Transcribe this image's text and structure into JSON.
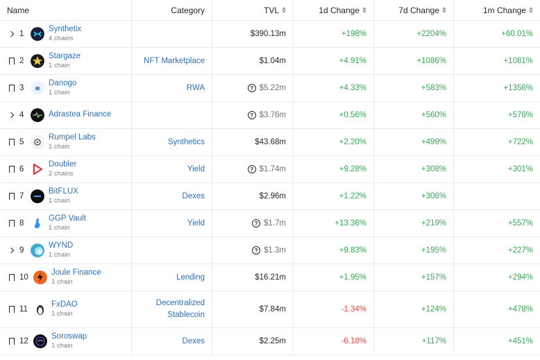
{
  "header": {
    "name": "Name",
    "category": "Category",
    "tvl": "TVL",
    "change_1d": "1d Change",
    "change_7d": "7d Change",
    "change_1m": "1m Change"
  },
  "rows": [
    {
      "rank": "1",
      "lead": "chevron",
      "name": "Synthetix",
      "chains": "4 chains",
      "category": "",
      "tvl": "$390.13m",
      "tvl_flag": false,
      "d1": "+198%",
      "d7": "+2204%",
      "m1": "+60.01%",
      "logo_color": "#1a1f3c",
      "logo_icon": "synthetix-logo-icon"
    },
    {
      "rank": "2",
      "lead": "bookmark",
      "name": "Stargaze",
      "chains": "1 chain",
      "category": "NFT Marketplace",
      "tvl": "$1.04m",
      "tvl_flag": false,
      "d1": "+4.91%",
      "d7": "+1086%",
      "m1": "+1081%",
      "logo_color": "#1c1c1c",
      "logo_icon": "stargaze-logo-icon"
    },
    {
      "rank": "3",
      "lead": "bookmark",
      "name": "Danogo",
      "chains": "1 chain",
      "category": "RWA",
      "tvl": "$5.22m",
      "tvl_flag": true,
      "d1": "+4.33%",
      "d7": "+583%",
      "m1": "+1356%",
      "logo_color": "#e8f0fb",
      "logo_icon": "danogo-logo-icon"
    },
    {
      "rank": "4",
      "lead": "chevron",
      "name": "Adrastea Finance",
      "chains": "",
      "category": "",
      "tvl": "$3.76m",
      "tvl_flag": true,
      "d1": "+0.56%",
      "d7": "+560%",
      "m1": "+576%",
      "logo_color": "#111111",
      "logo_icon": "adrastea-logo-icon"
    },
    {
      "rank": "5",
      "lead": "bookmark",
      "name": "Rumpel Labs",
      "chains": "1 chain",
      "category": "Synthetics",
      "tvl": "$43.68m",
      "tvl_flag": false,
      "d1": "+2.20%",
      "d7": "+499%",
      "m1": "+722%",
      "logo_color": "#f2f2f2",
      "logo_icon": "rumpel-logo-icon"
    },
    {
      "rank": "6",
      "lead": "bookmark",
      "name": "Doubler",
      "chains": "2 chains",
      "category": "Yield",
      "tvl": "$1.74m",
      "tvl_flag": true,
      "d1": "+9.28%",
      "d7": "+308%",
      "m1": "+301%",
      "logo_color": "#ffffff",
      "logo_icon": "doubler-logo-icon"
    },
    {
      "rank": "7",
      "lead": "bookmark",
      "name": "BitFLUX",
      "chains": "1 chain",
      "category": "Dexes",
      "tvl": "$2.96m",
      "tvl_flag": false,
      "d1": "+1.22%",
      "d7": "+306%",
      "m1": "",
      "logo_color": "#0d0d0d",
      "logo_icon": "bitflux-logo-icon"
    },
    {
      "rank": "8",
      "lead": "bookmark",
      "name": "GGP Vault",
      "chains": "1 chain",
      "category": "Yield",
      "tvl": "$1.7m",
      "tvl_flag": true,
      "d1": "+13.36%",
      "d7": "+219%",
      "m1": "+557%",
      "logo_color": "#ffffff",
      "logo_icon": "ggp-vault-logo-icon"
    },
    {
      "rank": "9",
      "lead": "chevron",
      "name": "WYND",
      "chains": "1 chain",
      "category": "",
      "tvl": "$1.3m",
      "tvl_flag": true,
      "d1": "+9.83%",
      "d7": "+195%",
      "m1": "+227%",
      "logo_color": "#3fa7c9",
      "logo_icon": "wynd-logo-icon"
    },
    {
      "rank": "10",
      "lead": "bookmark",
      "name": "Joule Finance",
      "chains": "1 chain",
      "category": "Lending",
      "tvl": "$16.21m",
      "tvl_flag": false,
      "d1": "+1.95%",
      "d7": "+157%",
      "m1": "+294%",
      "logo_color": "#f26522",
      "logo_icon": "joule-logo-icon"
    },
    {
      "rank": "11",
      "lead": "bookmark",
      "name": "FxDAO",
      "chains": "1 chain",
      "category": "Decentralized Stablecoin",
      "tvl": "$7.84m",
      "tvl_flag": false,
      "d1": "-1.34%",
      "d7": "+124%",
      "m1": "+478%",
      "logo_color": "#ffffff",
      "logo_icon": "fxdao-logo-icon"
    },
    {
      "rank": "12",
      "lead": "bookmark",
      "name": "Soroswap",
      "chains": "1 chain",
      "category": "Dexes",
      "tvl": "$2.25m",
      "tvl_flag": false,
      "d1": "-6.18%",
      "d7": "+117%",
      "m1": "+451%",
      "logo_color": "#0a0a0a",
      "logo_icon": "soroswap-logo-icon"
    }
  ],
  "colors": {
    "link": "#2f6fbd",
    "positive": "#3aa655",
    "negative": "#e5484d",
    "border": "#e8eaee"
  }
}
